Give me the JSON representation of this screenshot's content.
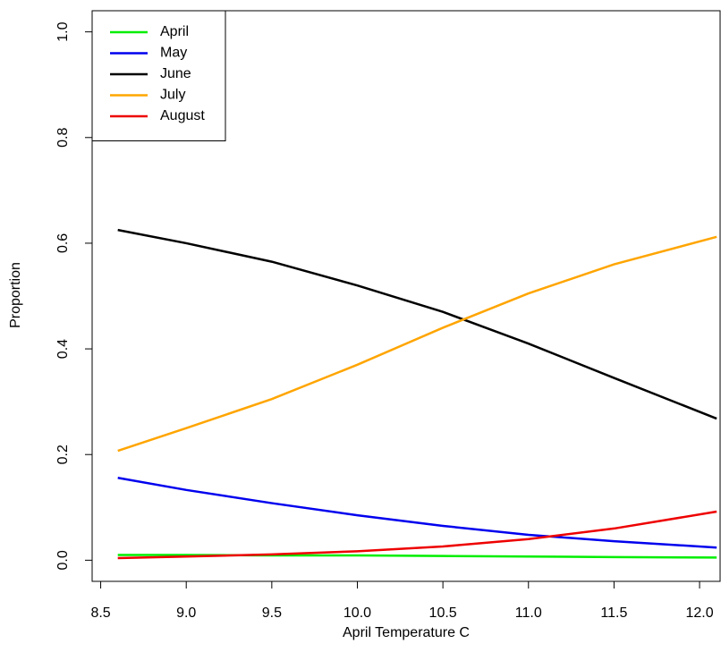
{
  "chart_data": {
    "type": "line",
    "x_label": "April Temperature C",
    "y_label": "Proportion",
    "x": [
      8.6,
      9.0,
      9.5,
      10.0,
      10.5,
      11.0,
      11.5,
      12.1
    ],
    "series": [
      {
        "name": "April",
        "color": "#00ee00",
        "values": [
          0.01,
          0.01,
          0.009,
          0.009,
          0.008,
          0.007,
          0.006,
          0.005
        ]
      },
      {
        "name": "May",
        "color": "#0000ee",
        "values": [
          0.156,
          0.133,
          0.108,
          0.085,
          0.065,
          0.048,
          0.036,
          0.024
        ]
      },
      {
        "name": "June",
        "color": "#000000",
        "values": [
          0.625,
          0.6,
          0.565,
          0.52,
          0.47,
          0.41,
          0.345,
          0.268
        ]
      },
      {
        "name": "July",
        "color": "#ffa500",
        "values": [
          0.207,
          0.25,
          0.305,
          0.37,
          0.44,
          0.505,
          0.56,
          0.612
        ]
      },
      {
        "name": "August",
        "color": "#ee0000",
        "values": [
          0.004,
          0.007,
          0.011,
          0.017,
          0.026,
          0.04,
          0.06,
          0.092
        ]
      }
    ],
    "xlim": [
      8.45,
      12.12
    ],
    "ylim": [
      -0.04,
      1.04
    ],
    "xticks": [
      8.5,
      {
        "value": 9,
        "label": "9.0"
      },
      9.5,
      {
        "value": 10,
        "label": "10.0"
      },
      10.5,
      {
        "value": 11,
        "label": "11.0"
      },
      11.5,
      {
        "value": 12,
        "label": "12.0"
      }
    ],
    "yticks": [
      {
        "value": 0,
        "label": "0.0"
      },
      0.2,
      0.4,
      0.6,
      0.8,
      {
        "value": 1,
        "label": "1.0"
      }
    ],
    "legend": "top-left"
  }
}
